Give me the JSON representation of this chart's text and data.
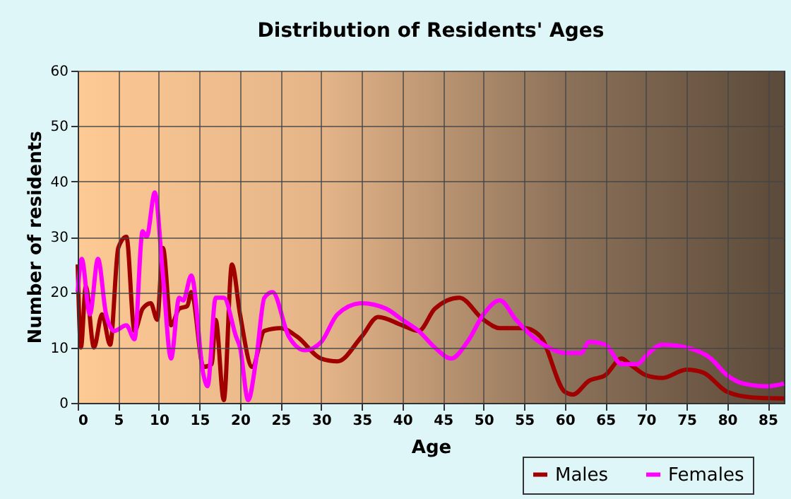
{
  "chart_data": {
    "type": "line",
    "title": "Distribution of Residents' Ages",
    "xlabel": "Age",
    "ylabel": "Number of residents",
    "xlim": [
      0,
      87
    ],
    "xticks": [
      0,
      5,
      10,
      15,
      20,
      25,
      30,
      35,
      40,
      45,
      50,
      55,
      60,
      65,
      70,
      75,
      80,
      85
    ],
    "ylim": [
      0,
      60
    ],
    "yticks": [
      0,
      10,
      20,
      30,
      40,
      50,
      60
    ],
    "grid": true,
    "legend": "bottom right",
    "series": [
      {
        "name": "Males",
        "color": "#a00000",
        "x": [
          0,
          0.4,
          1,
          2,
          3,
          4,
          5,
          6,
          7,
          8,
          9,
          9.8,
          10.5,
          11.5,
          12.5,
          13.5,
          14,
          15.5,
          16.5,
          17,
          18,
          19,
          20,
          21.5,
          23,
          25,
          27,
          30,
          32,
          35,
          37,
          40,
          42,
          44,
          47,
          50,
          52,
          55,
          57,
          60,
          61,
          63,
          65,
          67,
          68,
          70,
          72,
          75,
          77,
          80,
          83,
          87
        ],
        "values": [
          25,
          10,
          21,
          10,
          16,
          10.5,
          28,
          30,
          13,
          17,
          18,
          15,
          28,
          14,
          17,
          17.5,
          20,
          6.5,
          7,
          15,
          0.5,
          25,
          16,
          6.5,
          13,
          13.5,
          12,
          8,
          7.5,
          12,
          15.5,
          14,
          13,
          17,
          19,
          15,
          13.5,
          13.5,
          12,
          2,
          1.5,
          4,
          5,
          8,
          7,
          5,
          4.5,
          6,
          5.5,
          2,
          1,
          0.8
        ]
      },
      {
        "name": "Females",
        "color": "#ff00ff",
        "x": [
          0,
          0.5,
          1.5,
          2.5,
          3.5,
          4.5,
          6,
          7,
          8,
          8.5,
          9.5,
          10.5,
          11.5,
          12.5,
          13,
          14,
          15.5,
          16,
          17,
          18,
          19.5,
          20,
          21,
          22,
          23,
          24,
          26,
          28,
          30,
          32,
          35,
          38,
          40,
          42,
          44,
          46,
          48,
          50,
          52,
          54,
          56,
          58,
          60,
          62,
          63,
          65,
          67,
          69,
          70,
          72,
          75,
          78,
          80,
          82,
          85,
          87
        ],
        "values": [
          20,
          26,
          16,
          26,
          16,
          13,
          14,
          11.5,
          31,
          30,
          38,
          23,
          8,
          19,
          18.5,
          23,
          5,
          3,
          19,
          19,
          12,
          10,
          0.5,
          8,
          19,
          20,
          12,
          9.5,
          11,
          16,
          18,
          17,
          15,
          13,
          10,
          8,
          11,
          16,
          18.5,
          15,
          12,
          10,
          9,
          9,
          11,
          10.5,
          7,
          7,
          8.5,
          10.5,
          10,
          8,
          5,
          3.5,
          3,
          3.5
        ]
      }
    ]
  }
}
